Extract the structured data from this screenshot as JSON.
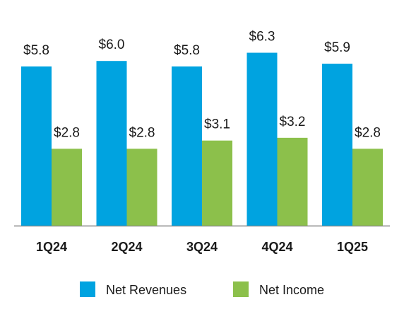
{
  "chart_data": {
    "type": "bar",
    "categories": [
      "1Q24",
      "2Q24",
      "3Q24",
      "4Q24",
      "1Q25"
    ],
    "series": [
      {
        "name": "Net Revenues",
        "color": "#00a3e0",
        "values": [
          5.8,
          6.0,
          5.8,
          6.3,
          5.9
        ],
        "value_labels": [
          "$5.8",
          "$6.0",
          "$5.8",
          "$6.3",
          "$5.9"
        ]
      },
      {
        "name": "Net Income",
        "color": "#8cc04b",
        "values": [
          2.8,
          2.8,
          3.1,
          3.2,
          2.8
        ],
        "value_labels": [
          "$2.8",
          "$2.8",
          "$3.1",
          "$3.2",
          "$2.8"
        ]
      }
    ]
  }
}
